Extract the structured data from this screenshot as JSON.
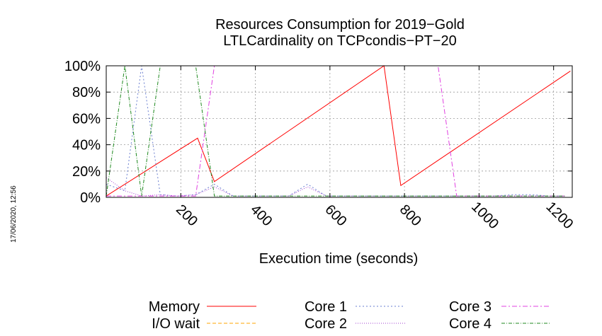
{
  "chart_data": {
    "type": "line",
    "title": "Resources Consumption for 2019−Gold",
    "subtitle": "LTLCardinality on TCPcondis−PT−20",
    "xlabel": "Execution time (seconds)",
    "ylabel": "",
    "timestamp": "17/06/2020, 12:56",
    "xlim": [
      0,
      1250
    ],
    "ylim": [
      0,
      100
    ],
    "xticks": [
      200,
      400,
      600,
      800,
      1000,
      1200
    ],
    "xtick_labels": [
      "200",
      "400",
      "600",
      "800",
      "1000",
      "1200"
    ],
    "yticks": [
      0,
      20,
      40,
      60,
      80,
      100
    ],
    "ytick_labels": [
      "0%",
      "20%",
      "40%",
      "60%",
      "80%",
      "100%"
    ],
    "grid": true,
    "legend_position": "bottom",
    "series": [
      {
        "name": "Memory",
        "color": "#ff0000",
        "dash": "",
        "x": [
          0,
          245,
          290,
          745,
          790,
          1245
        ],
        "y": [
          1,
          45,
          12,
          100,
          9,
          96
        ]
      },
      {
        "name": "I/O wait",
        "color": "#ffa500",
        "dash": "5,3",
        "x": [
          0,
          1250
        ],
        "y": [
          0,
          0
        ]
      },
      {
        "name": "Core 1",
        "color": "#6a7fd0",
        "dash": "2,3",
        "x": [
          0,
          50,
          95,
          145,
          190,
          240,
          290,
          340,
          390,
          440,
          490,
          540,
          590,
          640,
          690,
          740,
          790,
          840,
          890,
          940,
          990,
          1040,
          1090,
          1140,
          1190,
          1230
        ],
        "y": [
          10,
          5,
          100,
          2,
          1,
          2,
          10,
          1,
          1,
          1,
          1,
          10,
          1,
          1,
          1,
          1,
          1,
          1,
          1,
          1,
          1,
          1,
          2,
          2,
          1,
          1
        ]
      },
      {
        "name": "Core 2",
        "color": "#a040d0",
        "dash": "1,2",
        "x": [
          0,
          50,
          95,
          145,
          190,
          240,
          290,
          340,
          390,
          440,
          490,
          540,
          590,
          640,
          690,
          740,
          790,
          840,
          890,
          940,
          990,
          1040,
          1090,
          1140,
          1190,
          1230
        ],
        "y": [
          15,
          5,
          1,
          2,
          1,
          2,
          8,
          1,
          1,
          1,
          1,
          8,
          1,
          1,
          1,
          1,
          1,
          1,
          1,
          1,
          1,
          1,
          1,
          1,
          1,
          1
        ]
      },
      {
        "name": "Core 3",
        "color": "#e040e0",
        "dash": "7,3,2,3",
        "x": [
          0,
          50,
          95,
          145,
          190,
          240,
          290,
          340,
          390,
          440,
          490,
          540,
          590,
          640,
          690,
          740,
          790,
          840,
          890,
          940,
          990,
          1040,
          1090,
          1140,
          1190,
          1230
        ],
        "y": [
          1,
          1,
          1,
          1,
          1,
          1,
          100,
          100,
          100,
          100,
          100,
          100,
          100,
          100,
          100,
          100,
          100,
          100,
          100,
          1,
          1,
          1,
          1,
          1,
          1,
          1
        ]
      },
      {
        "name": "Core 4",
        "color": "#208a20",
        "dash": "5,2,1,2",
        "x": [
          0,
          50,
          95,
          145,
          190,
          240,
          290,
          340,
          390,
          440,
          490,
          540,
          590,
          640,
          690,
          740,
          790,
          840,
          890,
          940,
          990,
          1040,
          1090,
          1140,
          1190,
          1230
        ],
        "y": [
          1,
          100,
          1,
          100,
          100,
          100,
          1,
          1,
          1,
          1,
          1,
          1,
          1,
          1,
          1,
          1,
          1,
          1,
          1,
          1,
          1,
          1,
          1,
          1,
          1,
          1
        ]
      }
    ]
  }
}
